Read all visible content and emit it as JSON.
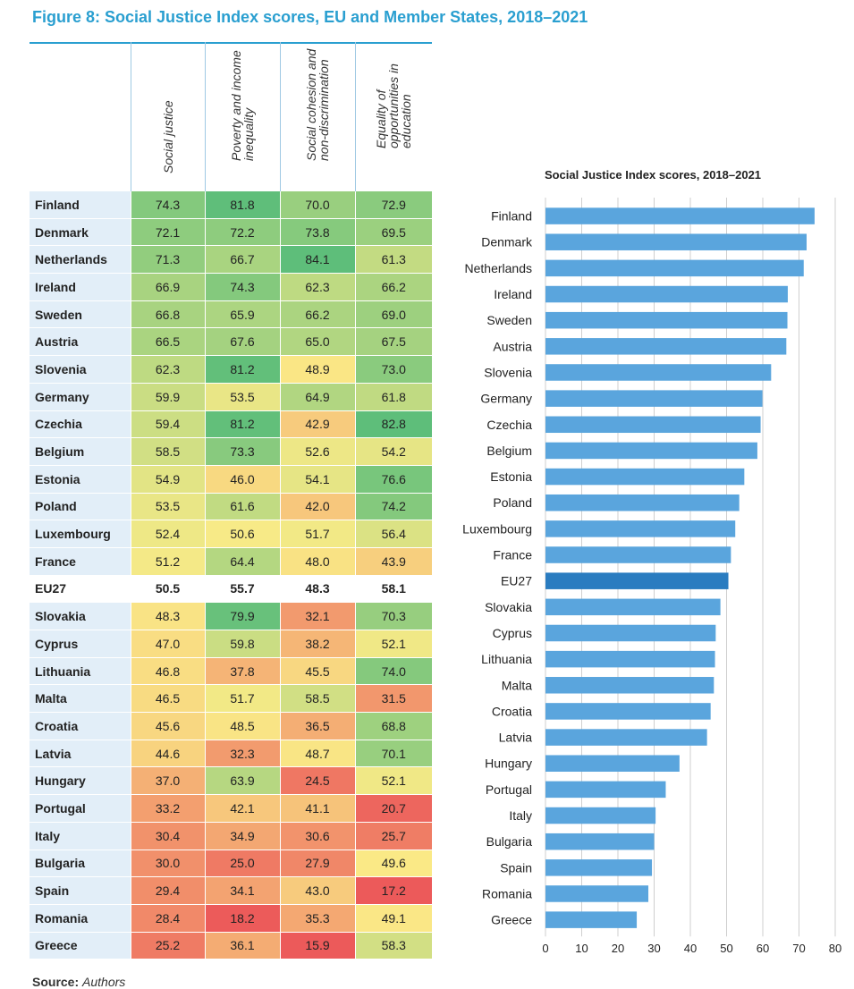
{
  "figure_title": "Figure 8: Social Justice Index scores, EU and Member States, 2018–2021",
  "table": {
    "columns": [
      "Social justice",
      "Poverty and income inequality",
      "Social cohesion and non-discrimination",
      "Equality of opportunities in education"
    ],
    "column_lines": [
      [
        "Social justice"
      ],
      [
        "Poverty and income",
        "inequality"
      ],
      [
        "Social cohesion and",
        "non-discrimination"
      ],
      [
        "Equality of",
        "opportunities in",
        "education"
      ]
    ],
    "rows": [
      {
        "country": "Finland",
        "values": [
          "74.3",
          "81.8",
          "70.0",
          "72.9"
        ]
      },
      {
        "country": "Denmark",
        "values": [
          "72.1",
          "72.2",
          "73.8",
          "69.5"
        ]
      },
      {
        "country": "Netherlands",
        "values": [
          "71.3",
          "66.7",
          "84.1",
          "61.3"
        ]
      },
      {
        "country": "Ireland",
        "values": [
          "66.9",
          "74.3",
          "62.3",
          "66.2"
        ]
      },
      {
        "country": "Sweden",
        "values": [
          "66.8",
          "65.9",
          "66.2",
          "69.0"
        ]
      },
      {
        "country": "Austria",
        "values": [
          "66.5",
          "67.6",
          "65.0",
          "67.5"
        ]
      },
      {
        "country": "Slovenia",
        "values": [
          "62.3",
          "81.2",
          "48.9",
          "73.0"
        ]
      },
      {
        "country": "Germany",
        "values": [
          "59.9",
          "53.5",
          "64.9",
          "61.8"
        ]
      },
      {
        "country": "Czechia",
        "values": [
          "59.4",
          "81.2",
          "42.9",
          "82.8"
        ]
      },
      {
        "country": "Belgium",
        "values": [
          "58.5",
          "73.3",
          "52.6",
          "54.2"
        ]
      },
      {
        "country": "Estonia",
        "values": [
          "54.9",
          "46.0",
          "54.1",
          "76.6"
        ]
      },
      {
        "country": "Poland",
        "values": [
          "53.5",
          "61.6",
          "42.0",
          "74.2"
        ]
      },
      {
        "country": "Luxembourg",
        "values": [
          "52.4",
          "50.6",
          "51.7",
          "56.4"
        ]
      },
      {
        "country": "France",
        "values": [
          "51.2",
          "64.4",
          "48.0",
          "43.9"
        ]
      },
      {
        "country": "EU27",
        "values": [
          "50.5",
          "55.7",
          "48.3",
          "58.1"
        ],
        "eu": true
      },
      {
        "country": "Slovakia",
        "values": [
          "48.3",
          "79.9",
          "32.1",
          "70.3"
        ]
      },
      {
        "country": "Cyprus",
        "values": [
          "47.0",
          "59.8",
          "38.2",
          "52.1"
        ]
      },
      {
        "country": "Lithuania",
        "values": [
          "46.8",
          "37.8",
          "45.5",
          "74.0"
        ]
      },
      {
        "country": "Malta",
        "values": [
          "46.5",
          "51.7",
          "58.5",
          "31.5"
        ]
      },
      {
        "country": "Croatia",
        "values": [
          "45.6",
          "48.5",
          "36.5",
          "68.8"
        ]
      },
      {
        "country": "Latvia",
        "values": [
          "44.6",
          "32.3",
          "48.7",
          "70.1"
        ]
      },
      {
        "country": "Hungary",
        "values": [
          "37.0",
          "63.9",
          "24.5",
          "52.1"
        ]
      },
      {
        "country": "Portugal",
        "values": [
          "33.2",
          "42.1",
          "41.1",
          "20.7"
        ]
      },
      {
        "country": "Italy",
        "values": [
          "30.4",
          "34.9",
          "30.6",
          "25.7"
        ]
      },
      {
        "country": "Bulgaria",
        "values": [
          "30.0",
          "25.0",
          "27.9",
          "49.6"
        ]
      },
      {
        "country": "Spain",
        "values": [
          "29.4",
          "34.1",
          "43.0",
          "17.2"
        ]
      },
      {
        "country": "Romania",
        "values": [
          "28.4",
          "18.2",
          "35.3",
          "49.1"
        ]
      },
      {
        "country": "Greece",
        "values": [
          "25.2",
          "36.1",
          "15.9",
          "58.3"
        ]
      }
    ]
  },
  "chart_data": {
    "type": "bar",
    "orientation": "horizontal",
    "title": "Social Justice Index scores, 2018–2021",
    "categories": [
      "Finland",
      "Denmark",
      "Netherlands",
      "Ireland",
      "Sweden",
      "Austria",
      "Slovenia",
      "Germany",
      "Czechia",
      "Belgium",
      "Estonia",
      "Poland",
      "Luxembourg",
      "France",
      "EU27",
      "Slovakia",
      "Cyprus",
      "Lithuania",
      "Malta",
      "Croatia",
      "Latvia",
      "Hungary",
      "Portugal",
      "Italy",
      "Bulgaria",
      "Spain",
      "Romania",
      "Greece"
    ],
    "values": [
      74.3,
      72.1,
      71.3,
      66.9,
      66.8,
      66.5,
      62.3,
      59.9,
      59.4,
      58.5,
      54.9,
      53.5,
      52.4,
      51.2,
      50.5,
      48.3,
      47.0,
      46.8,
      46.5,
      45.6,
      44.6,
      37.0,
      33.2,
      30.4,
      30.0,
      29.4,
      28.4,
      25.2
    ],
    "xlim": [
      0,
      80
    ],
    "xticks": [
      "0",
      "10",
      "20",
      "30",
      "40",
      "50",
      "60",
      "70",
      "80"
    ],
    "grid": true,
    "highlight": "EU27",
    "colors": {
      "bar": "#5aa5dd",
      "highlight": "#2a7cc0",
      "grid": "#cfcfcf"
    }
  },
  "heat_colors": {
    "low": "#ec5a5a",
    "mid": "#faeb87",
    "high": "#5ebe7a"
  },
  "source": {
    "label": "Source:",
    "text": "Authors"
  }
}
